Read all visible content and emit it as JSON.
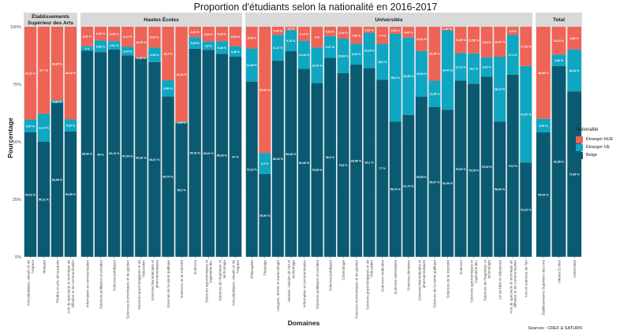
{
  "chart_data": {
    "type": "stacked-bar",
    "title": "Proportion d'étudiants selon la nationalité en 2016-2017",
    "xlabel": "Domaines",
    "ylabel": "Pourcentage",
    "ylim": [
      0,
      100
    ],
    "y_ticks": [
      "0%",
      "25%",
      "50%",
      "75%",
      "100%"
    ],
    "source": "Sources : CREF & SATURN",
    "legend": {
      "title": "Nationalité",
      "entries": [
        {
          "name": "Étranger HUE",
          "color": "#ee6457"
        },
        {
          "name": "Étranger UE",
          "color": "#0fa6c2"
        },
        {
          "name": "Belge",
          "color": "#0a5a72"
        }
      ]
    },
    "facets": [
      {
        "name": "Établissements Supérieur des Arts",
        "categories": [
          {
            "label": "Arts plastiques, visuels et de l'espace",
            "belge": 54.22,
            "ue": 5.37,
            "hue": 41.31
          },
          {
            "label": "Musique",
            "belge": 50.11,
            "ue": 12.13,
            "hue": 37.7
          },
          {
            "label": "Théâtre et arts de la parole",
            "belge": 66.99,
            "ue": 0.96,
            "hue": 33.65
          },
          {
            "label": "Arts du spectacle et technique de diffusion et de communication",
            "belge": 54.55,
            "ue": 5.23,
            "hue": 40.22
          }
        ]
      },
      {
        "name": "Hautes Écoles",
        "categories": [
          {
            "label": "Information et communication",
            "belge": 89.66,
            "ue": 2.0,
            "hue": 8.31
          },
          {
            "label": "Sciences politiques et sociales",
            "belge": 89.0,
            "ue": 5.02,
            "hue": 6.36
          },
          {
            "label": "Sciences juridiques",
            "belge": 90.14,
            "ue": 3.61,
            "hue": 6.25
          },
          {
            "label": "Sciences économiques et de gestion",
            "belge": 87.54,
            "ue": 3.74,
            "hue": 8.72
          },
          {
            "label": "Sciences psychologiques et de l'éducation",
            "belge": 86.36,
            "ue": 0.18,
            "hue": 13.25
          },
          {
            "label": "Sciences biomédicales et pharmaceutiques",
            "belge": 84.67,
            "ue": 6.29,
            "hue": 9.04
          },
          {
            "label": "Sciences de la santé publique",
            "belge": 69.74,
            "ue": 6.96,
            "hue": 23.3
          },
          {
            "label": "Sciences de la motricité",
            "belge": 58.2,
            "ue": 0.49,
            "hue": 41.31
          },
          {
            "label": "Sciences",
            "belge": 90.42,
            "ue": 5.06,
            "hue": 4.52
          },
          {
            "label": "Sciences agronomiques et ingénierie bio.",
            "belge": 90.01,
            "ue": 3.6,
            "hue": 6.39
          },
          {
            "label": "Sciences de l'ingénieur et technologie",
            "belge": 88.26,
            "ue": 5.48,
            "hue": 6.26
          },
          {
            "label": "Arts plastiques, visuels et de l'espace",
            "belge": 87.0,
            "ue": 4.48,
            "hue": 8.52
          }
        ]
      },
      {
        "name": "Universités",
        "categories": [
          {
            "label": "Philosophie",
            "belge": 76.16,
            "ue": 14.39,
            "hue": 9.45
          },
          {
            "label": "Théologie",
            "belge": 35.96,
            "ue": 9.2,
            "hue": 54.84
          },
          {
            "label": "Langues, lettres et traductologie",
            "belge": 85.24,
            "ue": 11.27,
            "hue": 3.49
          },
          {
            "label": "Histoire, histoire de l'art et archéologie",
            "belge": 89.38,
            "ue": 9.13,
            "hue": 1.5
          },
          {
            "label": "Information et communication",
            "belge": 81.68,
            "ue": 12.18,
            "hue": 6.14
          },
          {
            "label": "Sciences politiques et sociales",
            "belge": 75.58,
            "ue": 15.42,
            "hue": 9.0
          },
          {
            "label": "Sciences juridiques",
            "belge": 86.5,
            "ue": 9.47,
            "hue": 4.03
          },
          {
            "label": "Criminologie",
            "belge": 79.8,
            "ue": 15.06,
            "hue": 5.14
          },
          {
            "label": "Sciences économiques et de gestion",
            "belge": 83.58,
            "ue": 9.04,
            "hue": 7.38
          },
          {
            "label": "Sciences psychologiques et de l'éducation",
            "belge": 82.1,
            "ue": 15.29,
            "hue": 2.61
          },
          {
            "label": "Sciences médicales",
            "belge": 77.0,
            "ue": 15.6,
            "hue": 7.4
          },
          {
            "label": "Sciences vétérinaires",
            "belge": 58.74,
            "ue": 38.2,
            "hue": 3.06
          },
          {
            "label": "Sciences dentaires",
            "belge": 61.73,
            "ue": 33.58,
            "hue": 4.69
          },
          {
            "label": "Sciences biomédicales et pharmaceutiques",
            "belge": 69.65,
            "ue": 19.84,
            "hue": 10.51
          },
          {
            "label": "Sciences de la santé publique",
            "belge": 65.07,
            "ue": 11.48,
            "hue": 23.45
          },
          {
            "label": "Sciences de la motricité",
            "belge": 63.96,
            "ue": 34.47,
            "hue": 1.57
          },
          {
            "label": "Sciences",
            "belge": 76.54,
            "ue": 12.11,
            "hue": 11.35
          },
          {
            "label": "Sciences agronomiques et ingénierie bio.",
            "belge": 75.25,
            "ue": 13.2,
            "hue": 11.55
          },
          {
            "label": "Sciences de l'ingénieur et technologie",
            "belge": 78.28,
            "ue": 8.42,
            "hue": 13.3
          },
          {
            "label": "Art de bâtir et urbanisme",
            "belge": 58.84,
            "ue": 28.14,
            "hue": 13.02
          },
          {
            "label": "Arts du spectacle et technique de diffusion et de communication",
            "belge": 79.2,
            "ue": 17.2,
            "hue": 3.6
          },
          {
            "label": "Arts et sciences de l'art",
            "belge": 41.03,
            "ue": 41.92,
            "hue": 17.05
          }
        ]
      },
      {
        "name": "Total",
        "categories": [
          {
            "label": "Établissements Supérieur des Arts",
            "belge": 54.09,
            "ue": 5.93,
            "hue": 39.98
          },
          {
            "label": "Hautes Écoles",
            "belge": 82.89,
            "ue": 4.98,
            "hue": 12.13
          },
          {
            "label": "Universités",
            "belge": 71.89,
            "ue": 18.26,
            "hue": 9.85
          }
        ]
      }
    ]
  }
}
